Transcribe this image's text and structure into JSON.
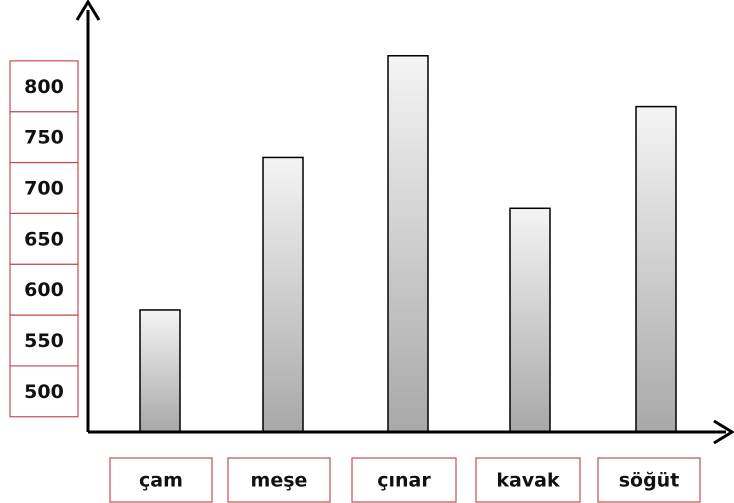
{
  "chart_data": {
    "type": "bar",
    "categories": [
      "çam",
      "meşe",
      "çınar",
      "kavak",
      "söğüt"
    ],
    "values": [
      580,
      730,
      830,
      680,
      780
    ],
    "ylim": [
      460,
      875
    ],
    "yticks": [
      500,
      550,
      600,
      650,
      700,
      750,
      800
    ],
    "color": "#b4b4b4",
    "box_color": "#c0504d"
  }
}
